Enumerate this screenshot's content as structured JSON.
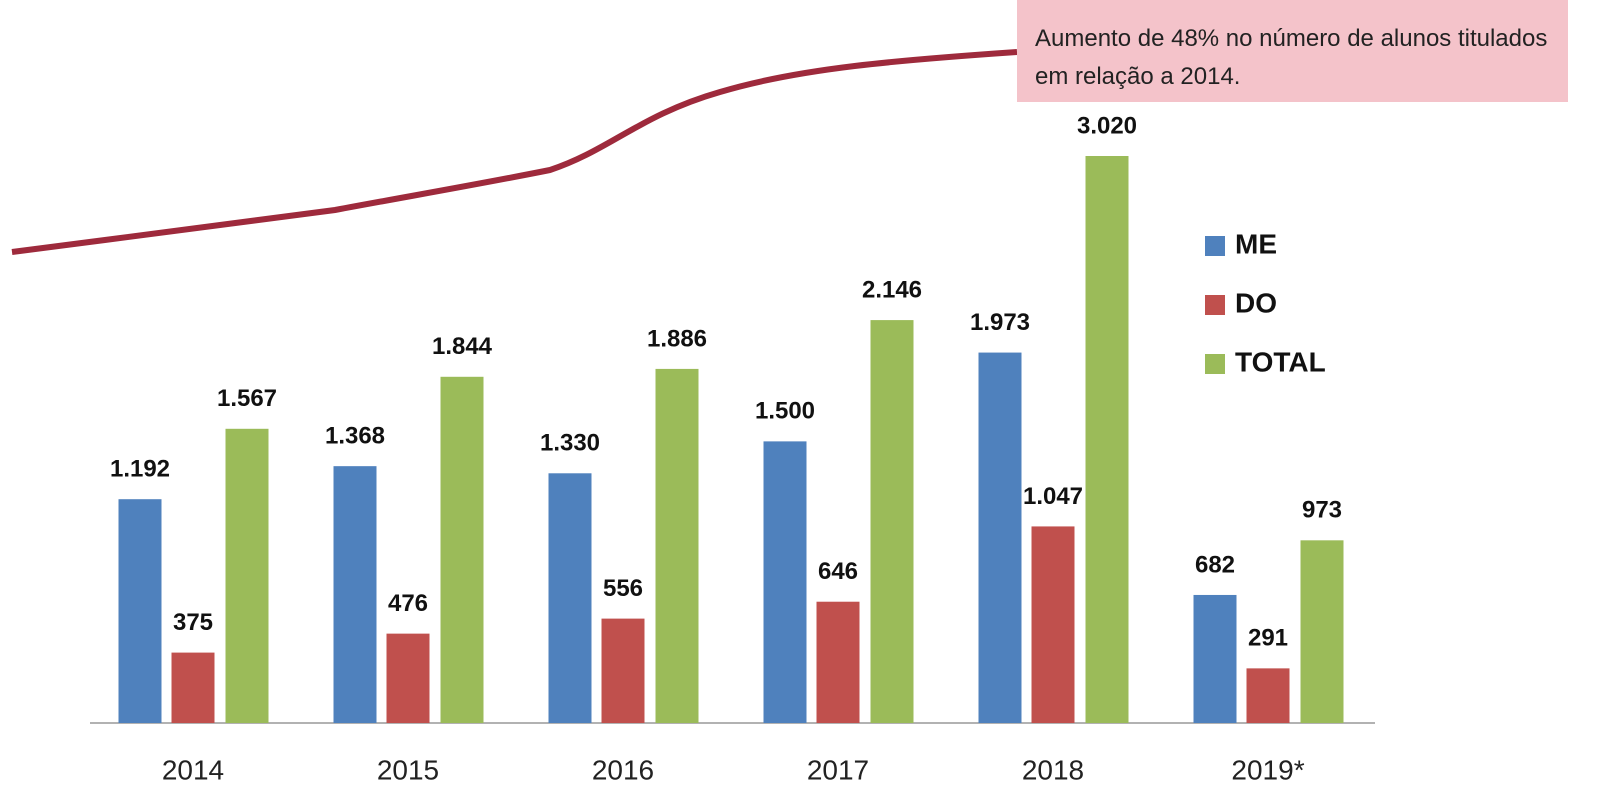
{
  "chart_data": {
    "type": "bar",
    "categories": [
      "2014",
      "2015",
      "2016",
      "2017",
      "2018",
      "2019*"
    ],
    "series": [
      {
        "name": "ME",
        "color": "#4f81bd",
        "values": [
          1192,
          1368,
          1330,
          1500,
          1973,
          682
        ],
        "value_labels": [
          "1.192",
          "1.368",
          "1.330",
          "1.500",
          "1.973",
          "682"
        ]
      },
      {
        "name": "DO",
        "color": "#c0504d",
        "values": [
          375,
          476,
          556,
          646,
          1047,
          291
        ],
        "value_labels": [
          "375",
          "476",
          "556",
          "646",
          "1.047",
          "291"
        ]
      },
      {
        "name": "TOTAL",
        "color": "#9bbb59",
        "values": [
          1567,
          1844,
          1886,
          2146,
          3020,
          973
        ],
        "value_labels": [
          "1.567",
          "1.844",
          "1.886",
          "2.146",
          "3.020",
          "973"
        ]
      }
    ],
    "annotation": "Aumento de 48% no número de alunos titulados em relação a 2014.",
    "legend": "right"
  }
}
